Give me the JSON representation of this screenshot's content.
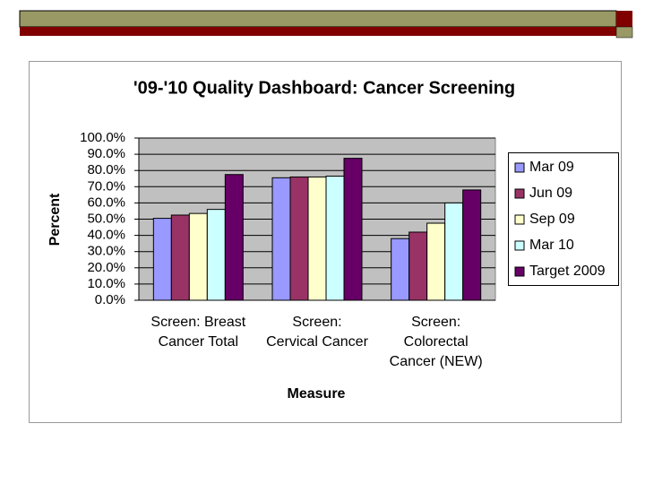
{
  "chart_data": {
    "type": "bar",
    "title": "'09-'10 Quality Dashboard:  Cancer Screening",
    "x_label": "Measure",
    "y_label": "Percent",
    "categories": [
      "Screen: Breast\nCancer Total",
      "Screen:\nCervical Cancer",
      "Screen:\nColorectal\nCancer (NEW)"
    ],
    "series": [
      {
        "name": "Mar 09",
        "color": "#9999ff",
        "values": [
          50.5,
          75.5,
          38
        ]
      },
      {
        "name": "Jun 09",
        "color": "#993366",
        "values": [
          52.5,
          76,
          42
        ]
      },
      {
        "name": "Sep 09",
        "color": "#ffffcc",
        "values": [
          53.5,
          76,
          47.5
        ]
      },
      {
        "name": "Mar 10",
        "color": "#ccffff",
        "values": [
          56,
          76.5,
          60
        ]
      },
      {
        "name": "Target 2009",
        "color": "#660066",
        "values": [
          77.5,
          87.5,
          68
        ]
      }
    ],
    "ylim": [
      0,
      100
    ],
    "yticks": [
      {
        "value": 0,
        "label": "0.0%"
      },
      {
        "value": 10,
        "label": "10.0%"
      },
      {
        "value": 20,
        "label": "20.0%"
      },
      {
        "value": 30,
        "label": "30.0%"
      },
      {
        "value": 40,
        "label": "40.0%"
      },
      {
        "value": 50,
        "label": "50.0%"
      },
      {
        "value": 60,
        "label": "60.0%"
      },
      {
        "value": 70,
        "label": "70.0%"
      },
      {
        "value": 80,
        "label": "80.0%"
      },
      {
        "value": 90,
        "label": "90.0%"
      },
      {
        "value": 100,
        "label": "100.0%"
      }
    ],
    "grid": true,
    "legend": "right"
  }
}
